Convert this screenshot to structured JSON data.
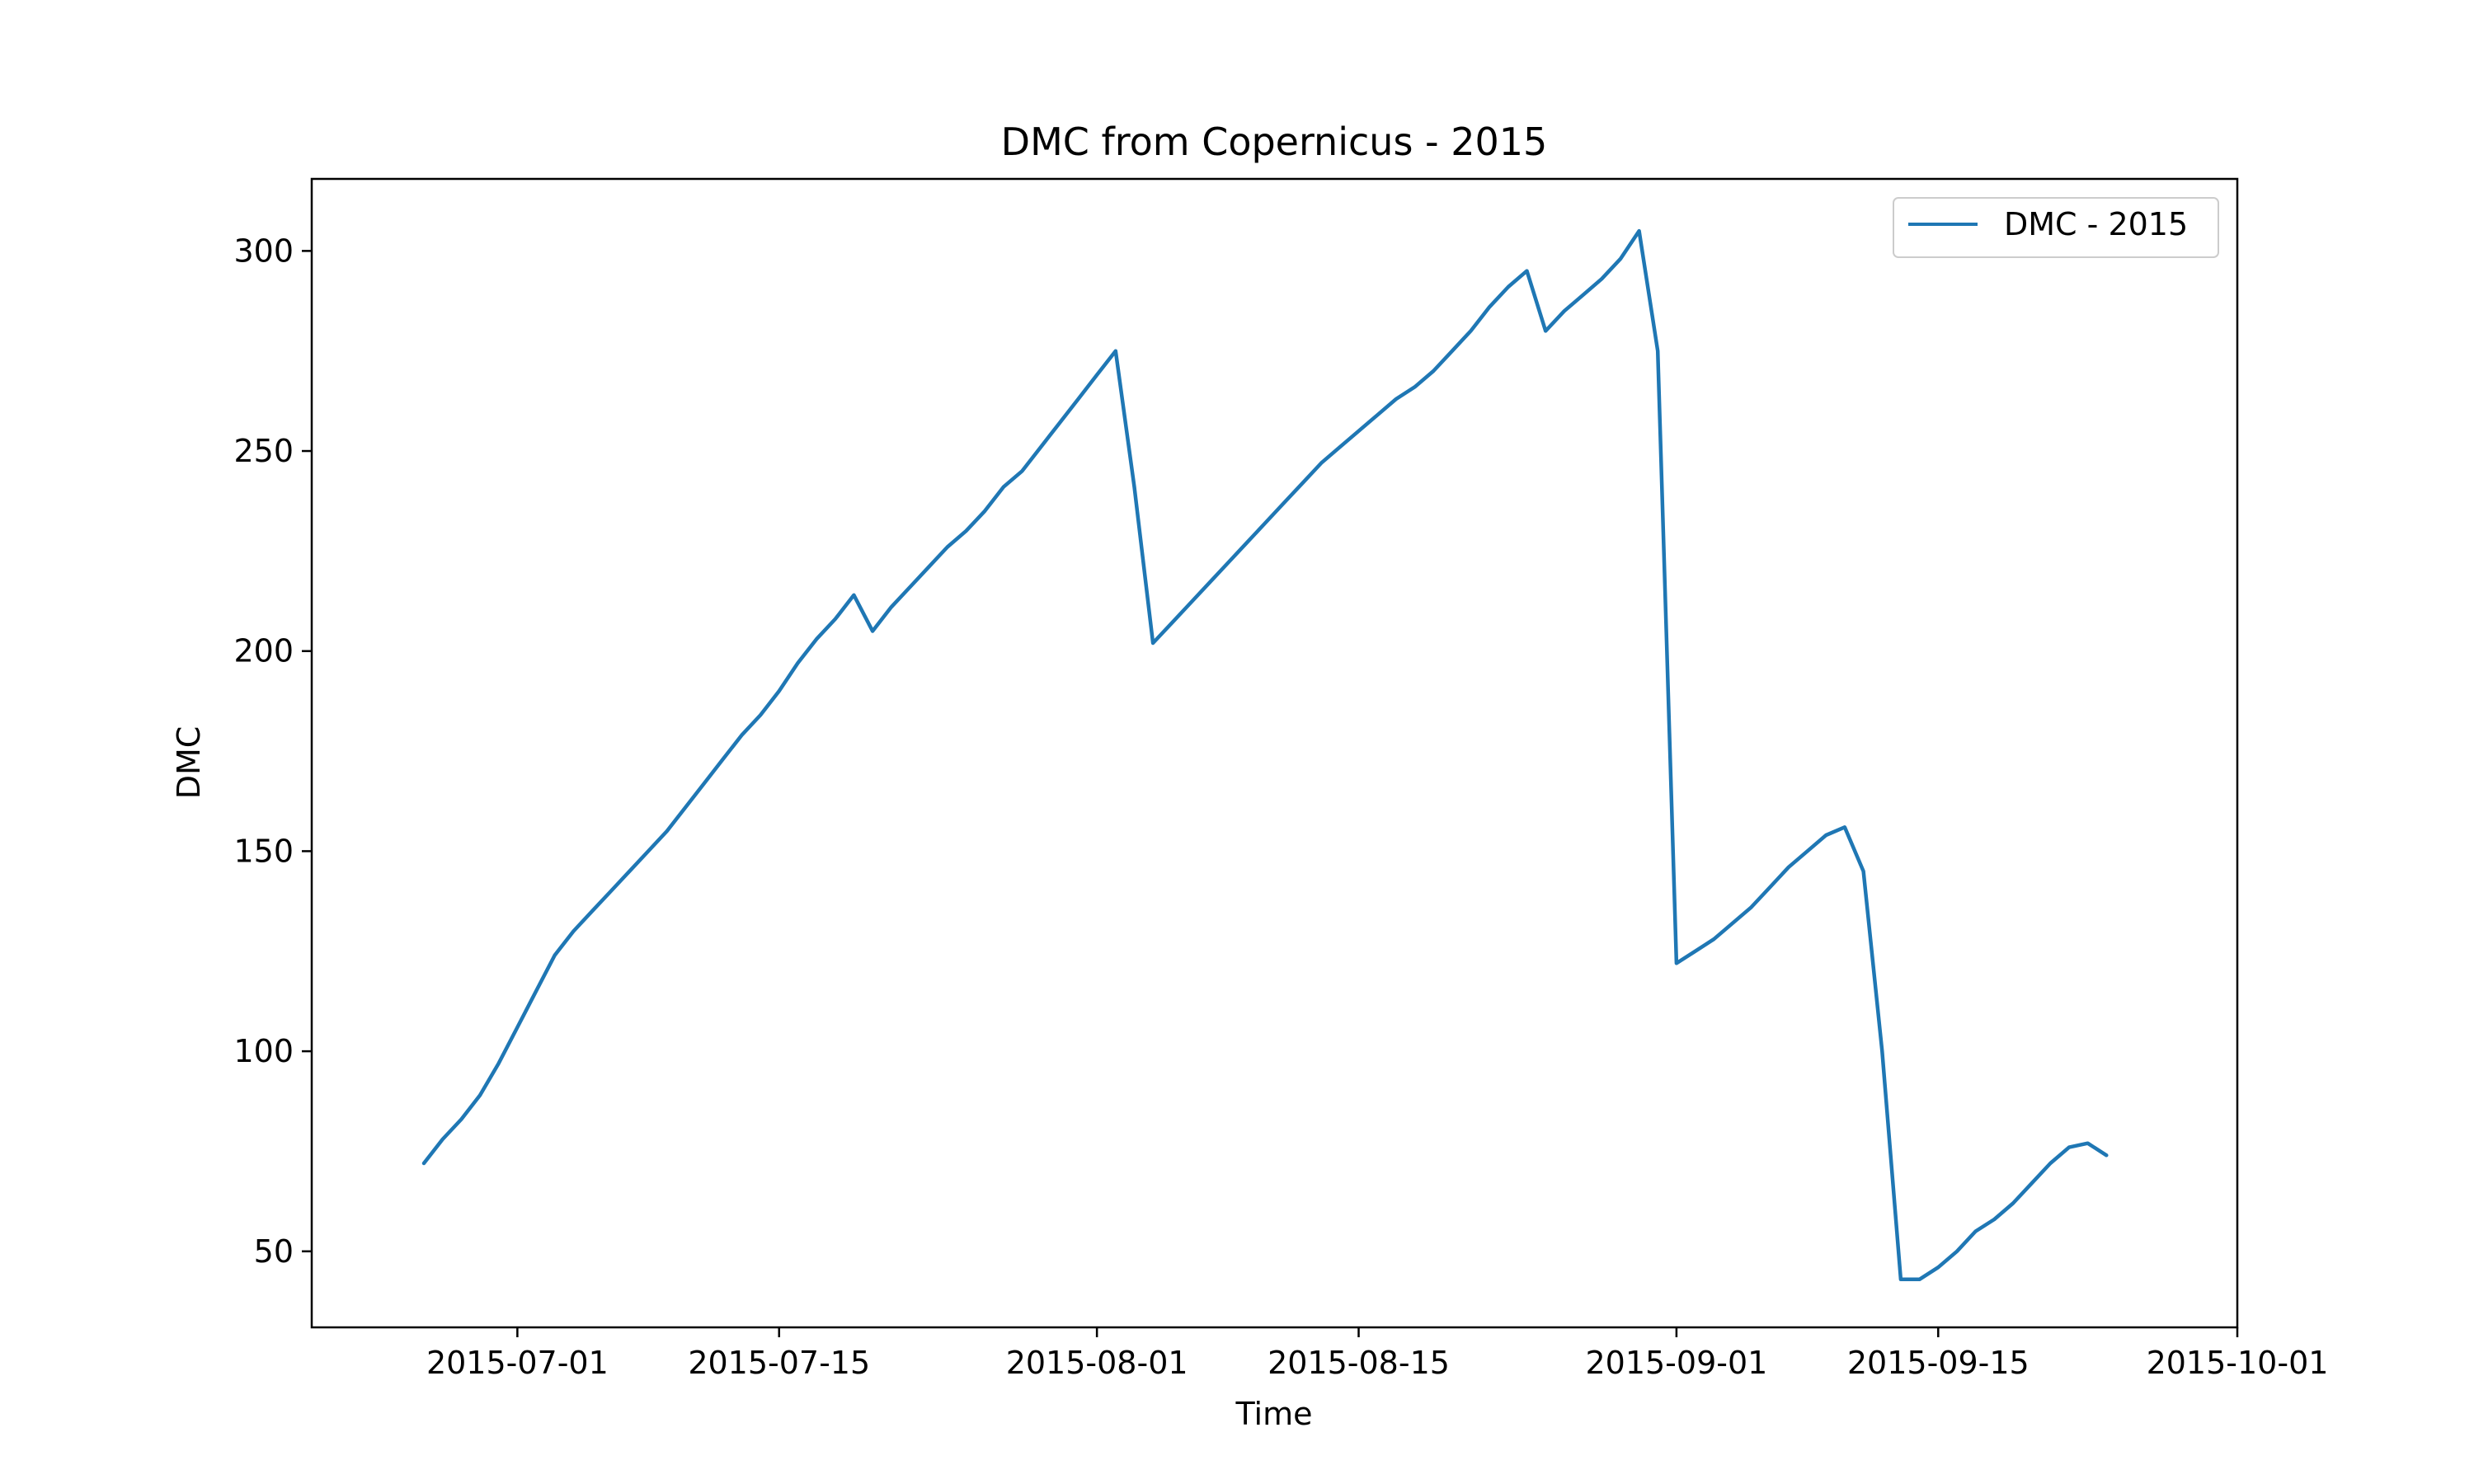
{
  "chart_data": {
    "type": "line",
    "title": "DMC from Copernicus - 2015",
    "xlabel": "Time",
    "ylabel": "DMC",
    "x_type": "date",
    "xlim": [
      "2015-06-20",
      "2015-10-01"
    ],
    "ylim": [
      31,
      318
    ],
    "x_ticks": [
      "2015-07-01",
      "2015-07-15",
      "2015-08-01",
      "2015-08-15",
      "2015-09-01",
      "2015-09-15",
      "2015-10-01"
    ],
    "y_ticks": [
      50,
      100,
      150,
      200,
      250,
      300
    ],
    "grid": false,
    "legend_position": "top-right",
    "series": [
      {
        "name": "DMC - 2015",
        "color": "#1f77b4",
        "points": [
          [
            "2015-06-26",
            72
          ],
          [
            "2015-06-27",
            78
          ],
          [
            "2015-06-28",
            83
          ],
          [
            "2015-06-29",
            89
          ],
          [
            "2015-06-30",
            97
          ],
          [
            "2015-07-01",
            106
          ],
          [
            "2015-07-02",
            115
          ],
          [
            "2015-07-03",
            124
          ],
          [
            "2015-07-04",
            130
          ],
          [
            "2015-07-05",
            135
          ],
          [
            "2015-07-06",
            140
          ],
          [
            "2015-07-07",
            145
          ],
          [
            "2015-07-08",
            150
          ],
          [
            "2015-07-09",
            155
          ],
          [
            "2015-07-10",
            161
          ],
          [
            "2015-07-11",
            167
          ],
          [
            "2015-07-12",
            173
          ],
          [
            "2015-07-13",
            179
          ],
          [
            "2015-07-14",
            184
          ],
          [
            "2015-07-15",
            190
          ],
          [
            "2015-07-16",
            197
          ],
          [
            "2015-07-17",
            203
          ],
          [
            "2015-07-18",
            208
          ],
          [
            "2015-07-19",
            214
          ],
          [
            "2015-07-20",
            205
          ],
          [
            "2015-07-21",
            211
          ],
          [
            "2015-07-22",
            216
          ],
          [
            "2015-07-23",
            221
          ],
          [
            "2015-07-24",
            226
          ],
          [
            "2015-07-25",
            230
          ],
          [
            "2015-07-26",
            235
          ],
          [
            "2015-07-27",
            241
          ],
          [
            "2015-07-28",
            245
          ],
          [
            "2015-07-29",
            251
          ],
          [
            "2015-07-30",
            257
          ],
          [
            "2015-07-31",
            263
          ],
          [
            "2015-08-01",
            269
          ],
          [
            "2015-08-02",
            275
          ],
          [
            "2015-08-03",
            241
          ],
          [
            "2015-08-04",
            202
          ],
          [
            "2015-08-05",
            207
          ],
          [
            "2015-08-06",
            212
          ],
          [
            "2015-08-07",
            217
          ],
          [
            "2015-08-08",
            222
          ],
          [
            "2015-08-09",
            227
          ],
          [
            "2015-08-10",
            232
          ],
          [
            "2015-08-11",
            237
          ],
          [
            "2015-08-12",
            242
          ],
          [
            "2015-08-13",
            247
          ],
          [
            "2015-08-14",
            251
          ],
          [
            "2015-08-15",
            255
          ],
          [
            "2015-08-16",
            259
          ],
          [
            "2015-08-17",
            263
          ],
          [
            "2015-08-18",
            266
          ],
          [
            "2015-08-19",
            270
          ],
          [
            "2015-08-20",
            275
          ],
          [
            "2015-08-21",
            280
          ],
          [
            "2015-08-22",
            286
          ],
          [
            "2015-08-23",
            291
          ],
          [
            "2015-08-24",
            295
          ],
          [
            "2015-08-25",
            280
          ],
          [
            "2015-08-26",
            285
          ],
          [
            "2015-08-27",
            289
          ],
          [
            "2015-08-28",
            293
          ],
          [
            "2015-08-29",
            298
          ],
          [
            "2015-08-30",
            305
          ],
          [
            "2015-08-31",
            275
          ],
          [
            "2015-09-01",
            122
          ],
          [
            "2015-09-02",
            125
          ],
          [
            "2015-09-03",
            128
          ],
          [
            "2015-09-04",
            132
          ],
          [
            "2015-09-05",
            136
          ],
          [
            "2015-09-06",
            141
          ],
          [
            "2015-09-07",
            146
          ],
          [
            "2015-09-08",
            150
          ],
          [
            "2015-09-09",
            154
          ],
          [
            "2015-09-10",
            156
          ],
          [
            "2015-09-11",
            145
          ],
          [
            "2015-09-12",
            100
          ],
          [
            "2015-09-13",
            43
          ],
          [
            "2015-09-14",
            43
          ],
          [
            "2015-09-15",
            46
          ],
          [
            "2015-09-16",
            50
          ],
          [
            "2015-09-17",
            55
          ],
          [
            "2015-09-18",
            58
          ],
          [
            "2015-09-19",
            62
          ],
          [
            "2015-09-20",
            67
          ],
          [
            "2015-09-21",
            72
          ],
          [
            "2015-09-22",
            76
          ],
          [
            "2015-09-23",
            77
          ],
          [
            "2015-09-24",
            74
          ]
        ]
      }
    ]
  }
}
